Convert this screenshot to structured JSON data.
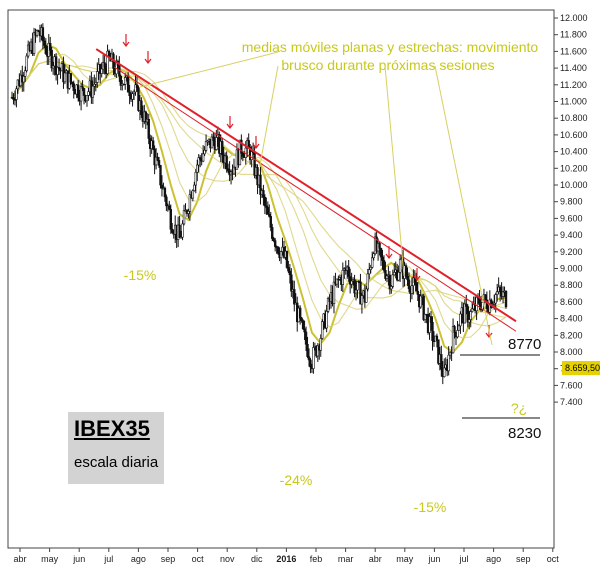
{
  "chart_data": {
    "type": "line",
    "title": "IBEX35",
    "subtitle": "escala diaria",
    "ylim": [
      7300,
      12000
    ],
    "y_ticks": [
      "12.000",
      "11.800",
      "11.600",
      "11.400",
      "11.200",
      "11.000",
      "10.800",
      "10.600",
      "10.400",
      "10.200",
      "10.000",
      "9.800",
      "9.600",
      "9.400",
      "9.200",
      "9.000",
      "8.800",
      "8.600",
      "8.400",
      "8.200",
      "8.000",
      "7.800",
      "7.600",
      "7.400"
    ],
    "x_ticks": [
      "abr",
      "may",
      "jun",
      "jul",
      "ago",
      "sep",
      "oct",
      "nov",
      "dic",
      "2016",
      "feb",
      "mar",
      "abr",
      "may",
      "jun",
      "jul",
      "ago",
      "sep",
      "oct"
    ],
    "last_price_label": "8.659,50",
    "series": [
      {
        "values": [
          11050,
          11300,
          11600,
          11850,
          11600,
          11450,
          11300,
          11200,
          11100,
          11150,
          11350,
          11500,
          11350,
          11200,
          11100,
          10800,
          10400,
          10000,
          9600,
          9350,
          9800,
          10250,
          10450,
          10550,
          10350,
          10200,
          10450,
          10400,
          10000,
          9600,
          9300,
          9100,
          8600,
          8200,
          7900,
          8200,
          8600,
          8850,
          9000,
          8750,
          8650,
          9300,
          9050,
          8850,
          9050,
          8850,
          8700,
          8400,
          8100,
          7700,
          8200,
          8450,
          8450,
          8600,
          8600,
          8700,
          8650
        ]
      }
    ],
    "level_labels": [
      "8770",
      "8230"
    ],
    "annotations": {
      "note_line1": "medias móviles planas y estrechas: movimiento",
      "note_line2": "brusco durante próximas sesiones",
      "pct_1": "-15%",
      "pct_2": "-24%",
      "pct_3": "-15%",
      "question": "?¿"
    },
    "colors": {
      "trendline": "#e0202a",
      "moving_averages": "#d8d070",
      "notes": "#c8c81e",
      "candles": "#111111",
      "price_tag": "#e6d200"
    }
  }
}
